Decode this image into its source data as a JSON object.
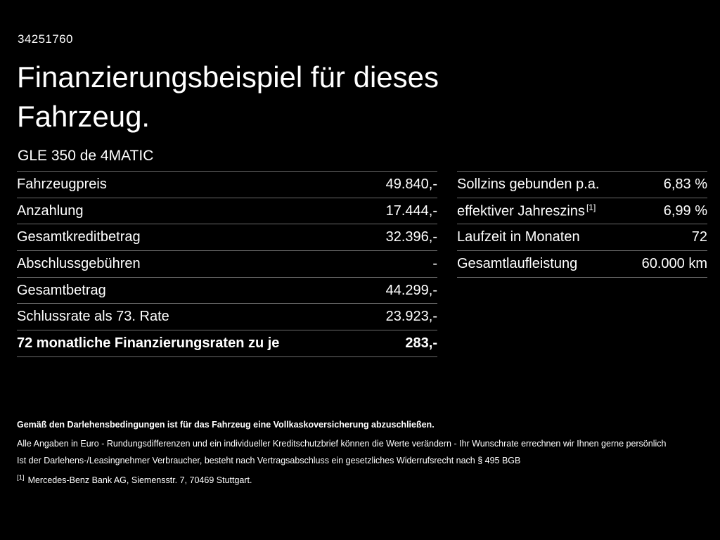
{
  "header": {
    "vehicle_id": "34251760",
    "title_line1": "Finanzierungsbeispiel für dieses",
    "title_line2": "Fahrzeug.",
    "subtitle": "GLE 350 de 4MATIC"
  },
  "left_table": {
    "rows": [
      {
        "label": "Fahrzeugpreis",
        "value": "49.840,-"
      },
      {
        "label": "Anzahlung",
        "value": "17.444,-"
      },
      {
        "label": "Gesamtkreditbetrag",
        "value": "32.396,-"
      },
      {
        "label": "Abschlussgebühren",
        "value": "-"
      },
      {
        "label": "Gesamtbetrag",
        "value": "44.299,-"
      },
      {
        "label": "Schlussrate als 73. Rate",
        "value": "23.923,-"
      },
      {
        "label": "72 monatliche Finanzierungsraten zu je",
        "value": "283,-"
      }
    ]
  },
  "right_table": {
    "rows": [
      {
        "label": "Sollzins gebunden p.a.",
        "sup": "",
        "value": "6,83 %"
      },
      {
        "label": "effektiver Jahreszins",
        "sup": "[1]",
        "value": "6,99 %"
      },
      {
        "label": "Laufzeit in Monaten",
        "sup": "",
        "value": "72"
      },
      {
        "label": "Gesamtlaufleistung",
        "sup": "",
        "value": "60.000 km"
      }
    ]
  },
  "footer": {
    "line1": "Gemäß den Darlehensbedingungen ist für das Fahrzeug eine Vollkaskoversicherung abzuschließen.",
    "line2": "Alle Angaben in Euro - Rundungsdifferenzen und ein individueller Kreditschutzbrief können die Werte verändern - Ihr Wunschrate errechnen wir Ihnen gerne persönlich",
    "line3": "Ist der Darlehens-/Leasingnehmer Verbraucher, besteht nach Vertragsabschluss ein gesetzliches Widerrufsrecht nach § 495 BGB",
    "footnote_marker": "[1]",
    "footnote_text": "Mercedes-Benz Bank AG, Siemensstr. 7, 70469 Stuttgart."
  },
  "colors": {
    "background": "#000000",
    "text": "#ffffff",
    "divider": "#6b6b6b"
  }
}
